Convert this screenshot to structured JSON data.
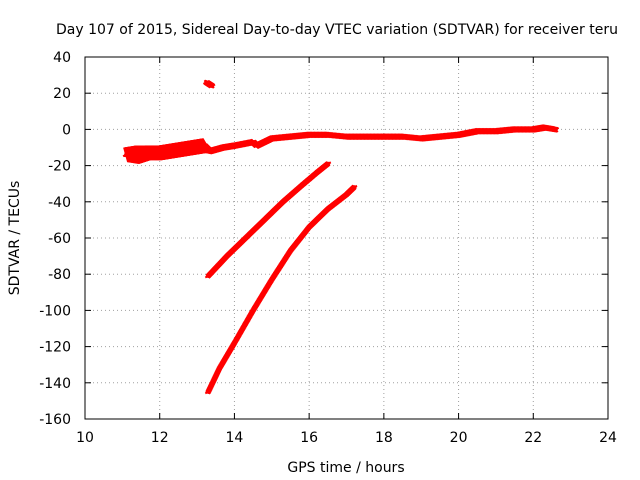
{
  "chart_data": {
    "type": "scatter",
    "title": "Day 107 of 2015, Sidereal Day-to-day VTEC variation (SDTVAR) for receiver teru",
    "xlabel": "GPS time / hours",
    "ylabel": "SDTVAR / TECUs",
    "xlim": [
      10,
      24
    ],
    "ylim": [
      -160,
      40
    ],
    "xticks": [
      10,
      12,
      14,
      16,
      18,
      20,
      22,
      24
    ],
    "yticks": [
      -160,
      -140,
      -120,
      -100,
      -80,
      -60,
      -40,
      -20,
      0,
      20,
      40
    ],
    "grid": true,
    "legend": "none",
    "series_color": "#ff0000",
    "series": [
      {
        "name": "main band",
        "x": [
          11.1,
          11.4,
          11.7,
          12.0,
          12.3,
          12.6,
          12.9,
          13.2,
          13.35,
          13.7,
          14.0,
          14.5,
          14.6,
          15.0,
          15.5,
          16.0,
          16.5,
          17.0,
          17.5,
          18.0,
          18.5,
          19.0,
          19.5,
          20.0,
          20.5,
          21.0,
          21.5,
          22.0,
          22.3,
          22.6
        ],
        "y": [
          -14,
          -14,
          -13,
          -13,
          -12,
          -11,
          -10,
          -9,
          -12,
          -10,
          -9,
          -7,
          -9,
          -5,
          -4,
          -3,
          -3,
          -4,
          -4,
          -4,
          -4,
          -5,
          -4,
          -3,
          -1,
          -1,
          0,
          0,
          1,
          0
        ],
        "spread": [
          4,
          5,
          4,
          4,
          4,
          4,
          4,
          4,
          1.5,
          1.5,
          1.5,
          1.5,
          1.5,
          1.5,
          1.5,
          1.5,
          1.5,
          1.5,
          1.5,
          1.5,
          1.5,
          1.5,
          1.5,
          1.5,
          1.5,
          1.5,
          1.5,
          1.5,
          1.5,
          1.5
        ]
      },
      {
        "name": "upper descending arc",
        "x": [
          13.3,
          13.8,
          14.3,
          14.8,
          15.3,
          15.8,
          16.2,
          16.5
        ],
        "y": [
          -81,
          -70,
          -60,
          -50,
          -40,
          -31,
          -24,
          -19
        ]
      },
      {
        "name": "lower descending arc",
        "x": [
          13.3,
          13.6,
          14.0,
          14.5,
          15.0,
          15.5,
          16.0,
          16.5,
          17.0,
          17.2
        ],
        "y": [
          -145,
          -132,
          -118,
          -100,
          -83,
          -67,
          -54,
          -44,
          -36,
          -32
        ]
      },
      {
        "name": "isolated short segment",
        "x": [
          13.25,
          13.4
        ],
        "y": [
          26,
          24
        ]
      }
    ]
  }
}
